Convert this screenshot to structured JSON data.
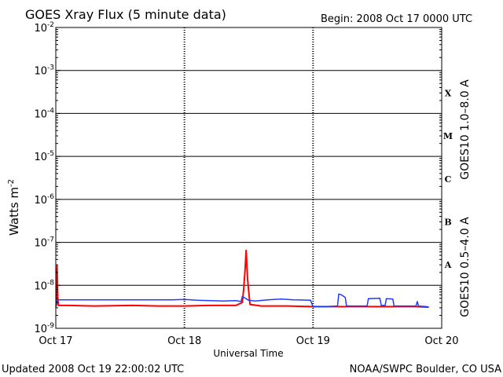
{
  "chart_data": {
    "type": "line",
    "title": "GOES Xray Flux (5 minute data)",
    "begin_label": "Begin:  2008 Oct 17 0000 UTC",
    "ylabel": "Watts m",
    "ylabel_sup": "-2",
    "xlabel": "Universal Time",
    "yscale": "log",
    "ylim": [
      1e-09,
      0.01
    ],
    "xlim": [
      0,
      3
    ],
    "y_ticks": [
      {
        "value": 0.01,
        "base": "10",
        "exp": "-2"
      },
      {
        "value": 0.001,
        "base": "10",
        "exp": "-3"
      },
      {
        "value": 0.0001,
        "base": "10",
        "exp": "-4"
      },
      {
        "value": 1e-05,
        "base": "10",
        "exp": "-5"
      },
      {
        "value": 1e-06,
        "base": "10",
        "exp": "-6"
      },
      {
        "value": 1e-07,
        "base": "10",
        "exp": "-7"
      },
      {
        "value": 1e-08,
        "base": "10",
        "exp": "-8"
      },
      {
        "value": 1e-09,
        "base": "10",
        "exp": "-9"
      }
    ],
    "x_ticks": [
      {
        "value": 0,
        "label": "Oct 17"
      },
      {
        "value": 1,
        "label": "Oct 18"
      },
      {
        "value": 2,
        "label": "Oct 19"
      },
      {
        "value": 3,
        "label": "Oct 20"
      }
    ],
    "flare_classes": [
      {
        "label": "X",
        "value": 0.0003
      },
      {
        "label": "M",
        "value": 3e-05
      },
      {
        "label": "C",
        "value": 3e-06
      },
      {
        "label": "B",
        "value": 3e-07
      },
      {
        "label": "A",
        "value": 3e-08
      }
    ],
    "series": [
      {
        "name": "GOES10 1.0–8.0 A",
        "color": "#ff0000",
        "points": [
          [
            0.0,
            3.3e-09
          ],
          [
            0.005,
            3.5e-09
          ],
          [
            0.01,
            2.8e-08
          ],
          [
            0.015,
            5e-09
          ],
          [
            0.02,
            3.4e-09
          ],
          [
            0.1,
            3.4e-09
          ],
          [
            0.3,
            3.3e-09
          ],
          [
            0.6,
            3.4e-09
          ],
          [
            0.8,
            3.3e-09
          ],
          [
            1.0,
            3.3e-09
          ],
          [
            1.2,
            3.4e-09
          ],
          [
            1.4,
            3.4e-09
          ],
          [
            1.45,
            4e-09
          ],
          [
            1.46,
            8e-09
          ],
          [
            1.47,
            2e-08
          ],
          [
            1.48,
            6.5e-08
          ],
          [
            1.49,
            1.5e-08
          ],
          [
            1.5,
            7e-09
          ],
          [
            1.51,
            3.6e-09
          ],
          [
            1.6,
            3.3e-09
          ],
          [
            1.8,
            3.3e-09
          ],
          [
            2.0,
            3.2e-09
          ],
          [
            2.2,
            3.2e-09
          ],
          [
            2.4,
            3.2e-09
          ],
          [
            2.6,
            3.2e-09
          ],
          [
            2.8,
            3.2e-09
          ],
          [
            2.9,
            3.1e-09
          ]
        ]
      },
      {
        "name": "GOES10 0.5–4.0 A",
        "color": "#1e3cff",
        "points": [
          [
            0.0,
            3e-09
          ],
          [
            0.01,
            4.6e-09
          ],
          [
            0.1,
            4.6e-09
          ],
          [
            0.3,
            4.6e-09
          ],
          [
            0.5,
            4.6e-09
          ],
          [
            0.7,
            4.6e-09
          ],
          [
            0.9,
            4.6e-09
          ],
          [
            1.0,
            4.7e-09
          ],
          [
            1.1,
            4.5e-09
          ],
          [
            1.2,
            4.4e-09
          ],
          [
            1.3,
            4.3e-09
          ],
          [
            1.4,
            4.4e-09
          ],
          [
            1.44,
            4.2e-09
          ],
          [
            1.45,
            5.5e-09
          ],
          [
            1.5,
            4.5e-09
          ],
          [
            1.55,
            4.3e-09
          ],
          [
            1.65,
            4.6e-09
          ],
          [
            1.75,
            4.8e-09
          ],
          [
            1.85,
            4.6e-09
          ],
          [
            1.98,
            4.5e-09
          ],
          [
            2.0,
            3.2e-09
          ],
          [
            2.1,
            3.2e-09
          ],
          [
            2.19,
            3.3e-09
          ],
          [
            2.2,
            6.3e-09
          ],
          [
            2.22,
            6e-09
          ],
          [
            2.25,
            5.2e-09
          ],
          [
            2.26,
            3.3e-09
          ],
          [
            2.42,
            3.3e-09
          ],
          [
            2.43,
            4.9e-09
          ],
          [
            2.52,
            5e-09
          ],
          [
            2.53,
            3.4e-09
          ],
          [
            2.56,
            3.4e-09
          ],
          [
            2.57,
            4.9e-09
          ],
          [
            2.62,
            4.8e-09
          ],
          [
            2.63,
            3.3e-09
          ],
          [
            2.8,
            3.3e-09
          ],
          [
            2.81,
            4.2e-09
          ],
          [
            2.82,
            3.3e-09
          ],
          [
            2.88,
            3.2e-09
          ],
          [
            2.9,
            3.1e-09
          ]
        ]
      }
    ],
    "grid": true,
    "legend_position": "right-vertical"
  },
  "footer": {
    "updated": "Updated 2008 Oct 19 22:00:02 UTC",
    "credit": "NOAA/SWPC Boulder, CO USA"
  }
}
